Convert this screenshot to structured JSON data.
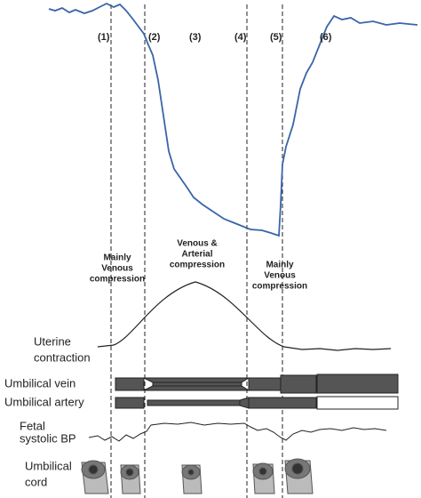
{
  "phases": [
    "(1)",
    "(2)",
    "(3)",
    "(4)",
    "(5)",
    "(6)"
  ],
  "annotations": {
    "left": [
      "Mainly",
      "Venous",
      "compression"
    ],
    "middle": [
      "Venous &",
      "Arterial",
      "compression"
    ],
    "right": [
      "Mainly",
      "Venous",
      "compression"
    ]
  },
  "rows": {
    "uterine": [
      "Uterine",
      "contraction"
    ],
    "vein": "Umbilical vein",
    "artery": "Umbilical artery",
    "bp": [
      "Fetal",
      "systolic BP"
    ],
    "cord": [
      "Umbilical",
      "cord"
    ]
  }
}
